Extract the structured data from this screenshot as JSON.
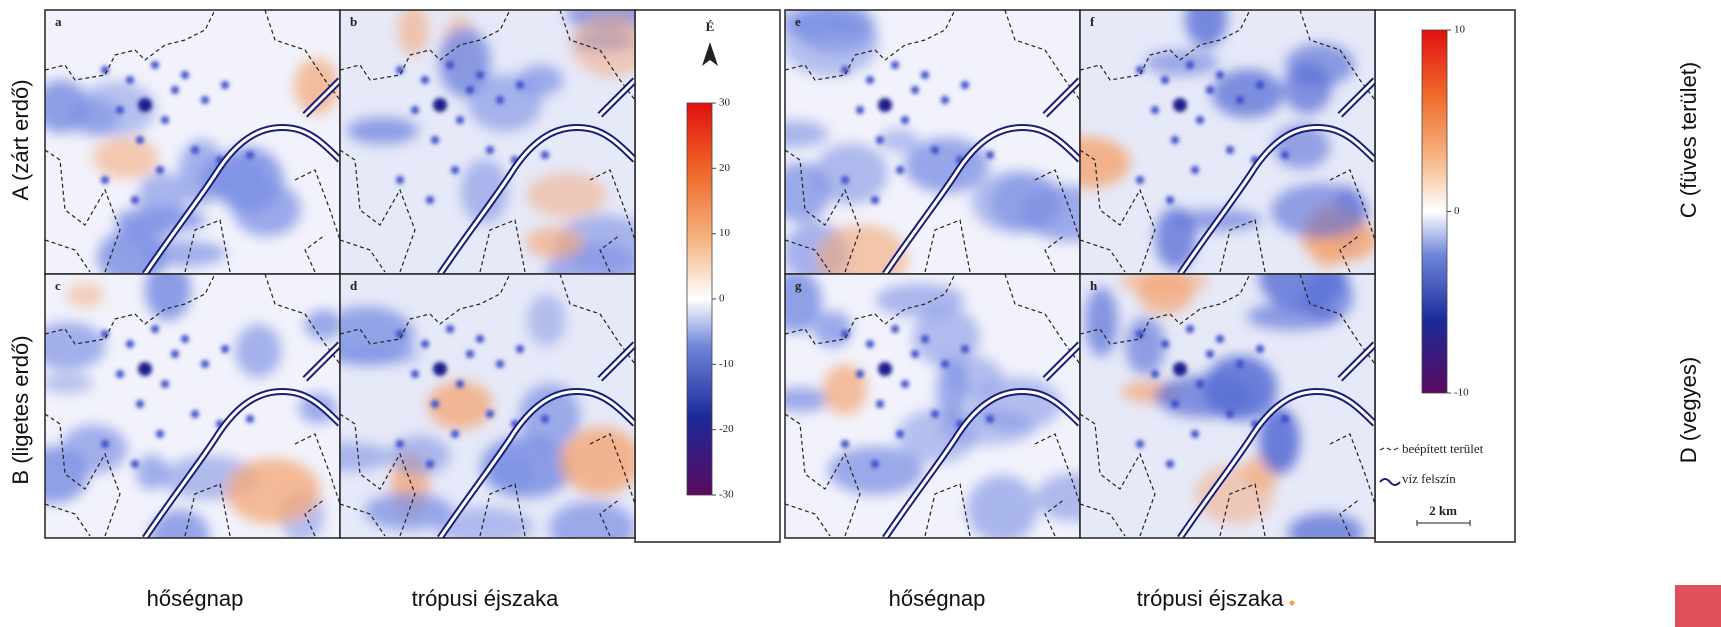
{
  "panel_letters": [
    "a",
    "b",
    "c",
    "d",
    "e",
    "f",
    "g",
    "h"
  ],
  "row_labels": [
    "A (zárt erdő)",
    "B (ligetes erdő)",
    "C (füves terület)",
    "D (vegyes)"
  ],
  "column_labels": [
    "hőségnap",
    "trópusi éjszaka",
    "hőségnap",
    "trópusi éjszaka"
  ],
  "colorbars": [
    {
      "lim": [
        -30,
        30
      ],
      "ticks": [
        30,
        20,
        10,
        0,
        -10,
        -20,
        -30
      ]
    },
    {
      "lim": [
        -10,
        10
      ],
      "ticks": [
        10,
        0,
        -10
      ]
    }
  ],
  "north": "É",
  "legend": {
    "built": "beépített terület",
    "water": "víz felszín",
    "scale": "2 km"
  }
}
